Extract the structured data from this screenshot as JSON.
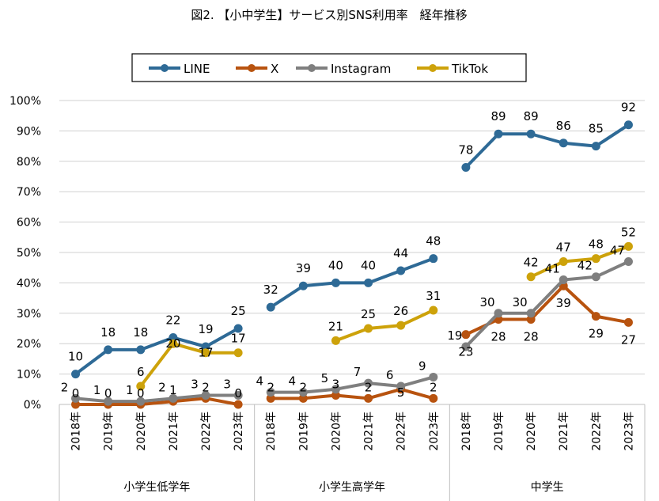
{
  "chart_data": {
    "type": "line",
    "title": "図2. 【小中学生】サービス別SNS利用率　経年推移",
    "ylim": [
      0,
      100
    ],
    "yticks": [
      "0%",
      "10%",
      "20%",
      "30%",
      "40%",
      "50%",
      "60%",
      "70%",
      "80%",
      "90%",
      "100%"
    ],
    "grid": true,
    "legend_position": "top",
    "groups": [
      {
        "label": "小学生低学年",
        "categories": [
          "2018年",
          "2019年",
          "2020年",
          "2021年",
          "2022年",
          "2023年"
        ]
      },
      {
        "label": "小学生高学年",
        "categories": [
          "2018年",
          "2019年",
          "2020年",
          "2021年",
          "2022年",
          "2023年"
        ]
      },
      {
        "label": "中学生",
        "categories": [
          "2018年",
          "2019年",
          "2020年",
          "2021年",
          "2022年",
          "2023年"
        ]
      }
    ],
    "series": [
      {
        "name": "LINE",
        "color": "#2e6a96",
        "values": [
          [
            10,
            18,
            18,
            22,
            19,
            25
          ],
          [
            32,
            39,
            40,
            40,
            44,
            48
          ],
          [
            78,
            89,
            89,
            86,
            85,
            92
          ]
        ]
      },
      {
        "name": "X",
        "color": "#b8530f",
        "values": [
          [
            0,
            0,
            0,
            1,
            2,
            0
          ],
          [
            2,
            2,
            3,
            2,
            5,
            2
          ],
          [
            23,
            28,
            28,
            39,
            29,
            27
          ]
        ]
      },
      {
        "name": "Instagram",
        "color": "#7f7f7f",
        "values": [
          [
            2,
            1,
            1,
            2,
            3,
            3
          ],
          [
            4,
            4,
            5,
            7,
            6,
            9
          ],
          [
            19,
            30,
            30,
            41,
            42,
            47
          ]
        ]
      },
      {
        "name": "TikTok",
        "color": "#cda20a",
        "values": [
          [
            null,
            null,
            6,
            20,
            17,
            17
          ],
          [
            null,
            null,
            21,
            25,
            26,
            31
          ],
          [
            null,
            null,
            42,
            47,
            48,
            52
          ]
        ]
      }
    ]
  }
}
